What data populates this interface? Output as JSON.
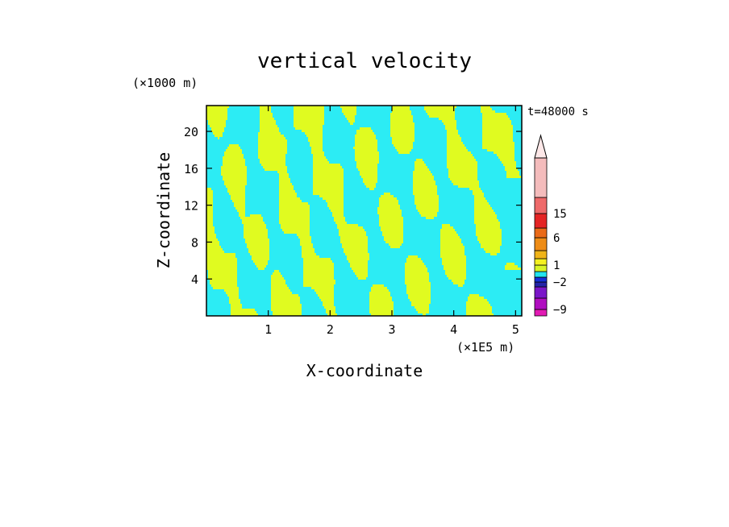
{
  "chart_data": {
    "type": "heatmap",
    "title": "vertical velocity",
    "xlabel": "X-coordinate",
    "ylabel": "Z-coordinate",
    "x_unit": "(×1E5 m)",
    "y_unit": "(×1000 m)",
    "time_label": "t=48000 s",
    "xlim": [
      0,
      5.1
    ],
    "ylim": [
      0,
      22.8
    ],
    "x_ticks": [
      1,
      2,
      3,
      4,
      5
    ],
    "y_ticks": [
      4,
      8,
      12,
      16,
      20
    ],
    "colorbar": {
      "labels": [
        "15",
        "6",
        "1",
        "−2",
        "−9"
      ],
      "label_values": [
        15,
        6,
        1,
        -2,
        -9
      ],
      "bins": [
        {
          "upper": -9,
          "color": "#e21bb4"
        },
        {
          "upper": -6,
          "color": "#b00ec0"
        },
        {
          "upper": -4,
          "color": "#7a16c8"
        },
        {
          "upper": -2,
          "color": "#2424a8"
        },
        {
          "upper": -1,
          "color": "#1530d8"
        },
        {
          "upper": 0,
          "color": "#22e4f0"
        },
        {
          "upper": 1,
          "color": "#d8f426"
        },
        {
          "upper": 2,
          "color": "#f4f020"
        },
        {
          "upper": 4,
          "color": "#f0b418"
        },
        {
          "upper": 6,
          "color": "#ee8c16"
        },
        {
          "upper": 10,
          "color": "#ea6a18"
        },
        {
          "upper": 15,
          "color": "#e42424"
        },
        {
          "upper": 20,
          "color": "#ee6a6a"
        },
        {
          "upper": null,
          "color": "#f4bcbc"
        }
      ]
    },
    "field_colors": {
      "positive": "#e0fb20",
      "negative": "#2cecf4"
    }
  }
}
